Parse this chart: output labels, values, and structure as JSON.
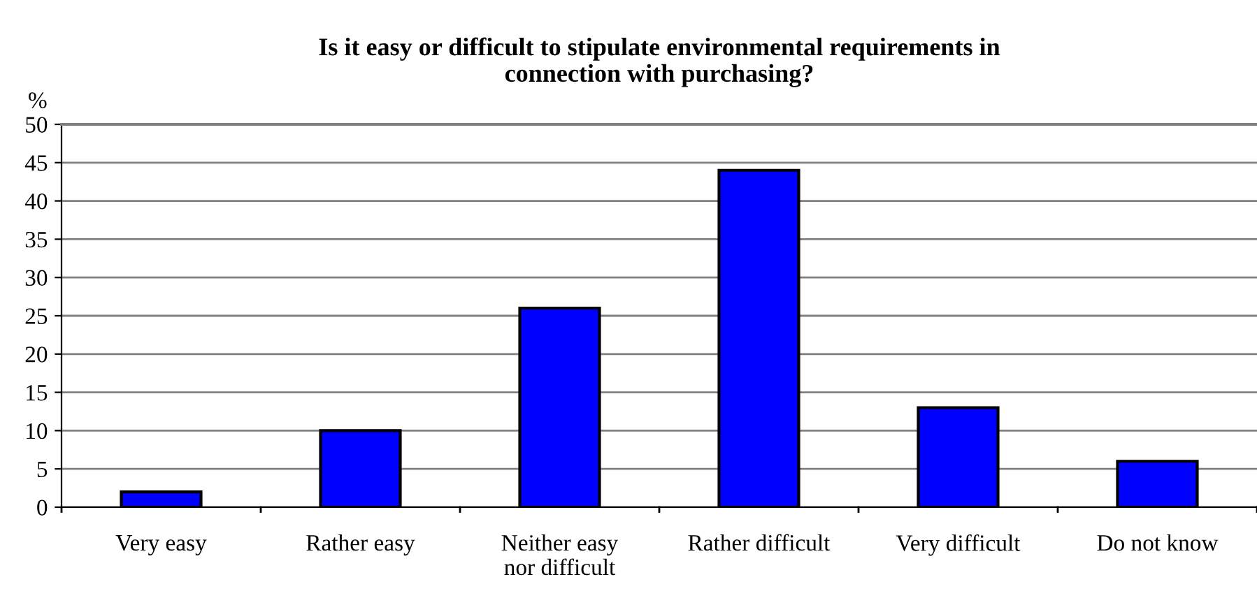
{
  "chart_data": {
    "type": "bar",
    "title": "Is it easy or difficult to stipulate environmental requirements in\nconnection with purchasing?",
    "ylabel": "%",
    "categories": [
      "Very easy",
      "Rather easy",
      "Neither easy\nnor difficult",
      "Rather difficult",
      "Very difficult",
      "Do not know"
    ],
    "values": [
      2,
      10,
      26,
      44,
      13,
      6
    ],
    "color": "#0000ff",
    "ylim": [
      0,
      50
    ],
    "yticks": [
      0,
      5,
      10,
      15,
      20,
      25,
      30,
      35,
      40,
      45,
      50
    ],
    "grid": "y"
  }
}
